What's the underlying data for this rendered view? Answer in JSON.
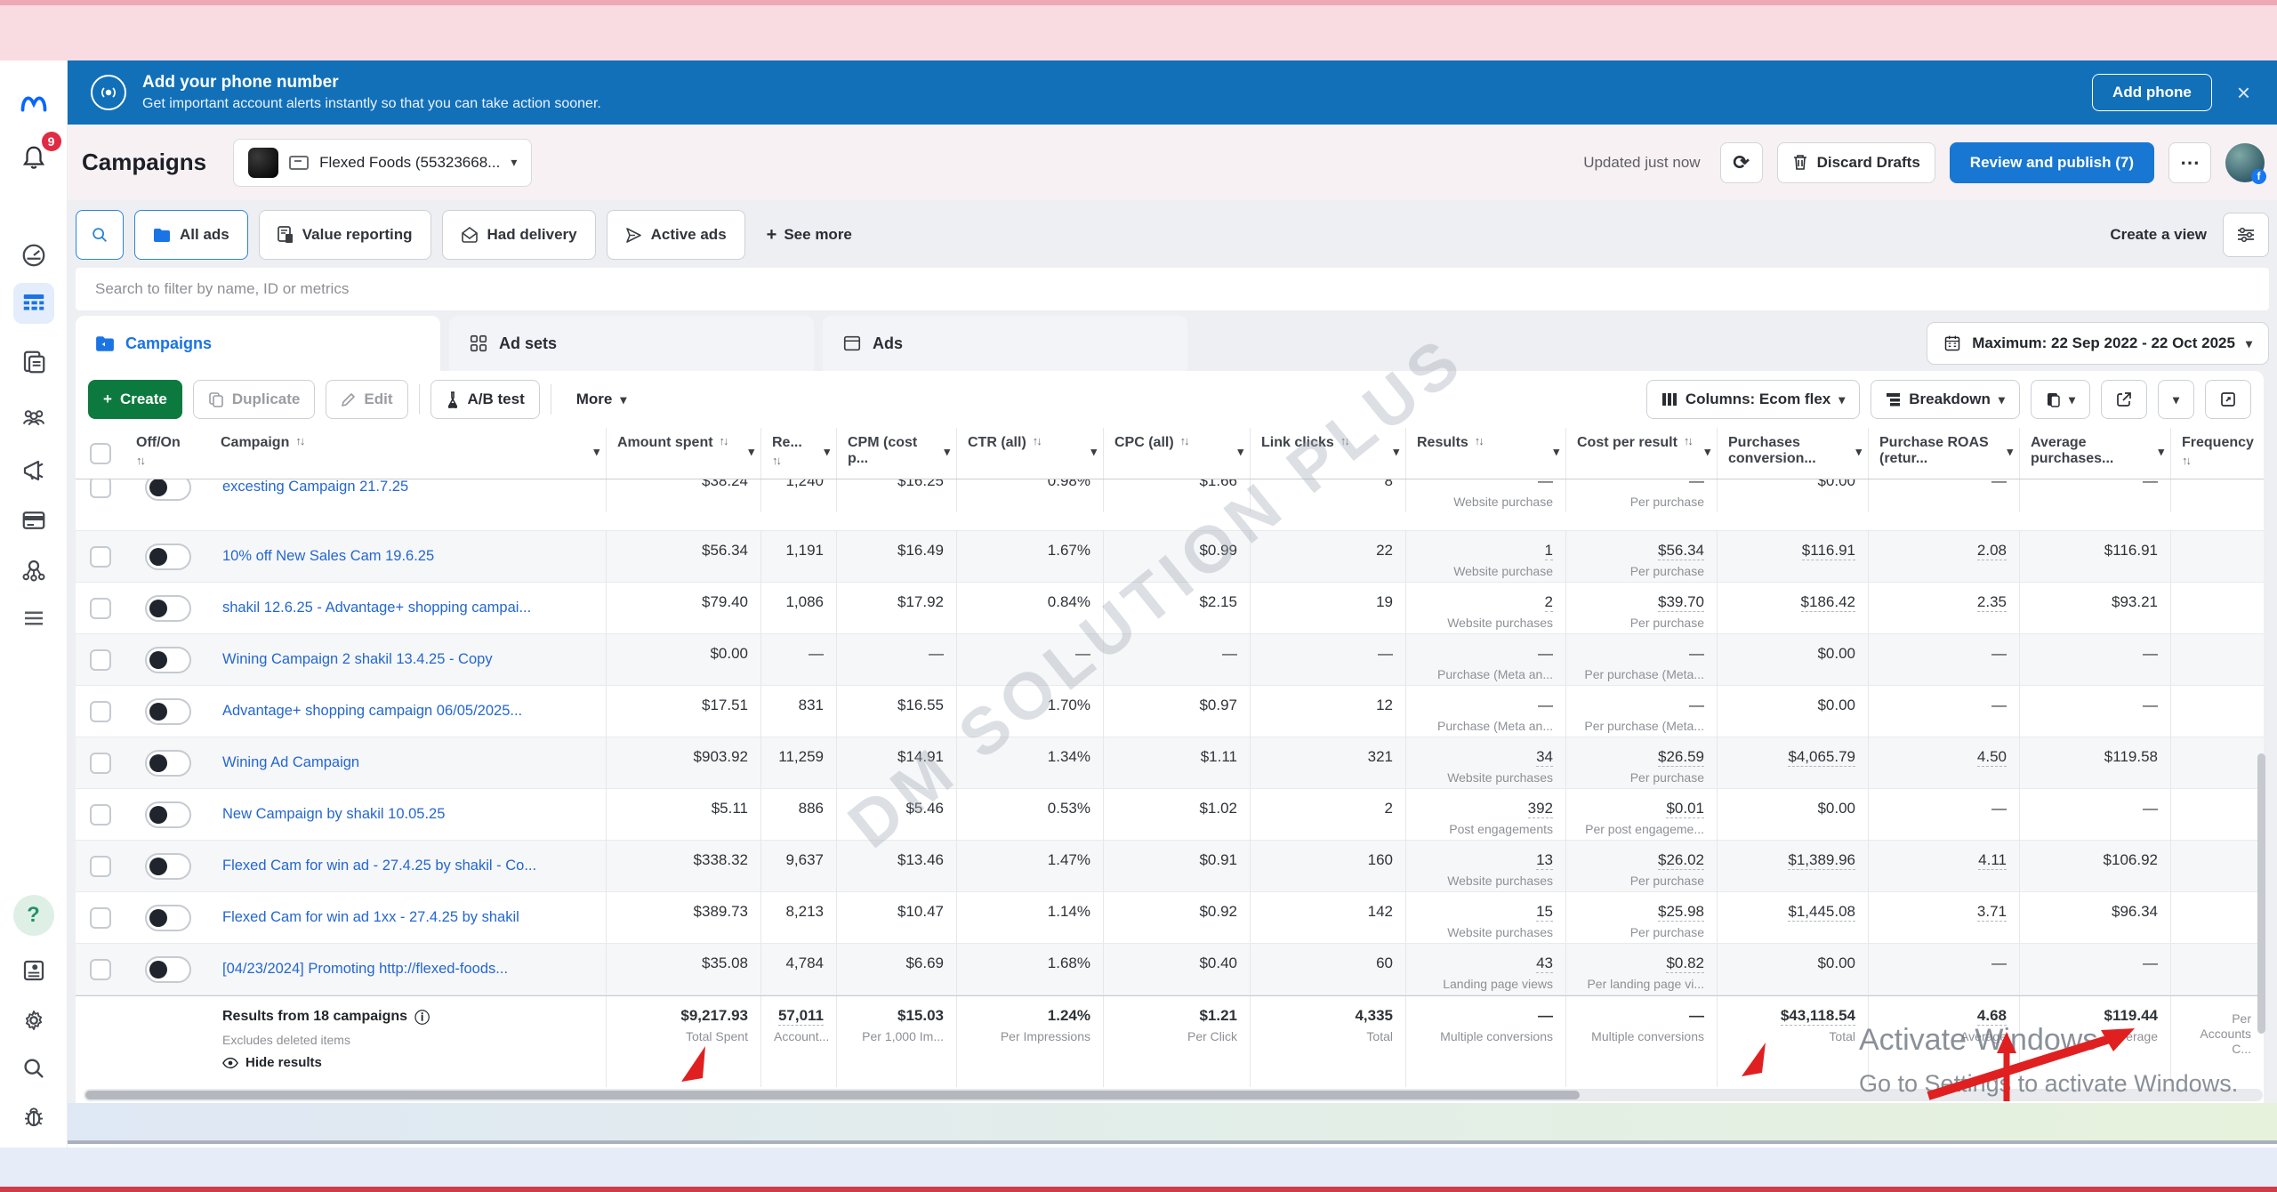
{
  "glyphs": {
    "close": "×",
    "caret": "▾",
    "sort": "↑↓",
    "plus": "+",
    "dots": "⋯",
    "refresh": "⟳",
    "info": "ⓘ",
    "fb": "f",
    "help": "?"
  },
  "sidebar": {
    "notification_count": "9"
  },
  "banner": {
    "title": "Add your phone number",
    "subtitle": "Get important account alerts instantly so that you can take action sooner.",
    "add_phone": "Add phone"
  },
  "header": {
    "page_title": "Campaigns",
    "account_name": "Flexed Foods (55323668...",
    "updated": "Updated just now",
    "discard": "Discard Drafts",
    "review_publish": "Review and publish (7)"
  },
  "filters": {
    "chips": [
      {
        "label": "All ads"
      },
      {
        "label": "Value reporting"
      },
      {
        "label": "Had delivery"
      },
      {
        "label": "Active ads"
      }
    ],
    "see_more": "See more",
    "create_view": "Create a view",
    "search_placeholder": "Search to filter by name, ID or metrics"
  },
  "tabs": [
    {
      "label": "Campaigns"
    },
    {
      "label": "Ad sets"
    },
    {
      "label": "Ads"
    }
  ],
  "date_range": "Maximum: 22 Sep 2022 - 22 Oct 2025",
  "toolbar": {
    "create": "Create",
    "duplicate": "Duplicate",
    "edit": "Edit",
    "ab_test": "A/B test",
    "more": "More",
    "columns": "Columns: Ecom flex",
    "breakdown": "Breakdown"
  },
  "table": {
    "columns": [
      {
        "id": "toggle",
        "label": "Off/On",
        "sort": true,
        "caret": false
      },
      {
        "id": "campaign",
        "label": "Campaign",
        "sort": true,
        "caret": true
      },
      {
        "id": "amount",
        "label": "Amount spent",
        "sort": true,
        "caret": true
      },
      {
        "id": "reach",
        "label": "Re...",
        "sort": true,
        "caret": true
      },
      {
        "id": "cpm",
        "label": "CPM (cost p...",
        "sort": false,
        "caret": true
      },
      {
        "id": "ctr",
        "label": "CTR (all)",
        "sort": true,
        "caret": true
      },
      {
        "id": "cpc",
        "label": "CPC (all)",
        "sort": true,
        "caret": true
      },
      {
        "id": "clicks",
        "label": "Link clicks",
        "sort": true,
        "caret": true
      },
      {
        "id": "results",
        "label": "Results",
        "sort": true,
        "caret": true
      },
      {
        "id": "cpr",
        "label": "Cost per result",
        "sort": true,
        "caret": true
      },
      {
        "id": "purch",
        "label": "Purchases conversion...",
        "sort": false,
        "caret": true
      },
      {
        "id": "roas",
        "label": "Purchase ROAS (retur...",
        "sort": false,
        "caret": true
      },
      {
        "id": "avg",
        "label": "Average purchases...",
        "sort": false,
        "caret": true
      },
      {
        "id": "freq",
        "label": "Frequency",
        "sort": true,
        "caret": false
      }
    ],
    "rows": [
      {
        "name": "excesting Campaign 21.7.25",
        "amount": "$38.24",
        "reach": "1,240",
        "cpm": "$16.25",
        "ctr": "0.98%",
        "cpc": "$1.66",
        "clicks": "8",
        "results": "—",
        "results_label": "Website purchase",
        "cpr": "—",
        "cpr_label": "Per purchase",
        "purch": "$0.00",
        "roas": "—",
        "avg": "—"
      },
      {
        "name": "10% off New Sales Cam 19.6.25",
        "amount": "$56.34",
        "reach": "1,191",
        "cpm": "$16.49",
        "ctr": "1.67%",
        "cpc": "$0.99",
        "clicks": "22",
        "results": "1",
        "results_label": "Website purchase",
        "cpr": "$56.34",
        "cpr_label": "Per purchase",
        "purch": "$116.91",
        "roas": "2.08",
        "avg": "$116.91"
      },
      {
        "name": "shakil 12.6.25 - Advantage+ shopping campai...",
        "amount": "$79.40",
        "reach": "1,086",
        "cpm": "$17.92",
        "ctr": "0.84%",
        "cpc": "$2.15",
        "clicks": "19",
        "results": "2",
        "results_label": "Website purchases",
        "cpr": "$39.70",
        "cpr_label": "Per purchase",
        "purch": "$186.42",
        "roas": "2.35",
        "avg": "$93.21"
      },
      {
        "name": "Wining Campaign 2 shakil 13.4.25 - Copy",
        "amount": "$0.00",
        "reach": "—",
        "cpm": "—",
        "ctr": "—",
        "cpc": "—",
        "clicks": "—",
        "results": "—",
        "results_label": "Purchase (Meta an...",
        "cpr": "—",
        "cpr_label": "Per purchase (Meta...",
        "purch": "$0.00",
        "roas": "—",
        "avg": "—"
      },
      {
        "name": "Advantage+ shopping campaign 06/05/2025...",
        "amount": "$17.51",
        "reach": "831",
        "cpm": "$16.55",
        "ctr": "1.70%",
        "cpc": "$0.97",
        "clicks": "12",
        "results": "—",
        "results_label": "Purchase (Meta an...",
        "cpr": "—",
        "cpr_label": "Per purchase (Meta...",
        "purch": "$0.00",
        "roas": "—",
        "avg": "—"
      },
      {
        "name": "Wining Ad Campaign",
        "amount": "$903.92",
        "reach": "11,259",
        "cpm": "$14.91",
        "ctr": "1.34%",
        "cpc": "$1.11",
        "clicks": "321",
        "results": "34",
        "results_label": "Website purchases",
        "cpr": "$26.59",
        "cpr_label": "Per purchase",
        "purch": "$4,065.79",
        "roas": "4.50",
        "avg": "$119.58"
      },
      {
        "name": "New Campaign by shakil 10.05.25",
        "amount": "$5.11",
        "reach": "886",
        "cpm": "$5.46",
        "ctr": "0.53%",
        "cpc": "$1.02",
        "clicks": "2",
        "results": "392",
        "results_label": "Post engagements",
        "cpr": "$0.01",
        "cpr_label": "Per post engageme...",
        "purch": "$0.00",
        "roas": "—",
        "avg": "—"
      },
      {
        "name": "Flexed Cam for win ad - 27.4.25 by shakil - Co...",
        "amount": "$338.32",
        "reach": "9,637",
        "cpm": "$13.46",
        "ctr": "1.47%",
        "cpc": "$0.91",
        "clicks": "160",
        "results": "13",
        "results_label": "Website purchases",
        "cpr": "$26.02",
        "cpr_label": "Per purchase",
        "purch": "$1,389.96",
        "roas": "4.11",
        "avg": "$106.92"
      },
      {
        "name": "Flexed Cam for win ad 1xx - 27.4.25 by shakil",
        "amount": "$389.73",
        "reach": "8,213",
        "cpm": "$10.47",
        "ctr": "1.14%",
        "cpc": "$0.92",
        "clicks": "142",
        "results": "15",
        "results_label": "Website purchases",
        "cpr": "$25.98",
        "cpr_label": "Per purchase",
        "purch": "$1,445.08",
        "roas": "3.71",
        "avg": "$96.34"
      },
      {
        "name": "[04/23/2024] Promoting http://flexed-foods...",
        "amount": "$35.08",
        "reach": "4,784",
        "cpm": "$6.69",
        "ctr": "1.68%",
        "cpc": "$0.40",
        "clicks": "60",
        "results": "43",
        "results_label": "Landing page views",
        "cpr": "$0.82",
        "cpr_label": "Per landing page vi...",
        "purch": "$0.00",
        "roas": "—",
        "avg": "—"
      }
    ]
  },
  "summary": {
    "title": "Results from 18 campaigns",
    "note": "Excludes deleted items",
    "hide_results": "Hide results",
    "cells": [
      {
        "id": "amount",
        "value": "$9,217.93",
        "label": "Total Spent",
        "u": false
      },
      {
        "id": "reach",
        "value": "57,011",
        "label": "Account...",
        "u": true
      },
      {
        "id": "cpm",
        "value": "$15.03",
        "label": "Per 1,000 Im...",
        "u": false
      },
      {
        "id": "ctr",
        "value": "1.24%",
        "label": "Per Impressions",
        "u": false
      },
      {
        "id": "cpc",
        "value": "$1.21",
        "label": "Per Click",
        "u": false
      },
      {
        "id": "clicks",
        "value": "4,335",
        "label": "Total",
        "u": false
      },
      {
        "id": "results",
        "value": "—",
        "label": "Multiple conversions",
        "u": false
      },
      {
        "id": "cpr",
        "value": "—",
        "label": "Multiple conversions",
        "u": false
      },
      {
        "id": "purch",
        "value": "$43,118.54",
        "label": "Total",
        "u": true
      },
      {
        "id": "roas",
        "value": "4.68",
        "label": "Average",
        "u": true
      },
      {
        "id": "avg",
        "value": "$119.44",
        "label": "Average",
        "u": false
      },
      {
        "id": "freq",
        "value": "",
        "label": "Per Accounts C...",
        "u": false
      }
    ]
  },
  "watermark": "DM SOLUTION PLUS",
  "activate_windows": {
    "line1": "Activate Windows",
    "line2": "Go to Settings to activate Windows."
  },
  "colors": {
    "banner_blue": "#1270b8",
    "primary_blue": "#1877d2",
    "create_green": "#0c7a3f",
    "link_blue": "#2467d1",
    "annotation_red": "#e02020"
  }
}
